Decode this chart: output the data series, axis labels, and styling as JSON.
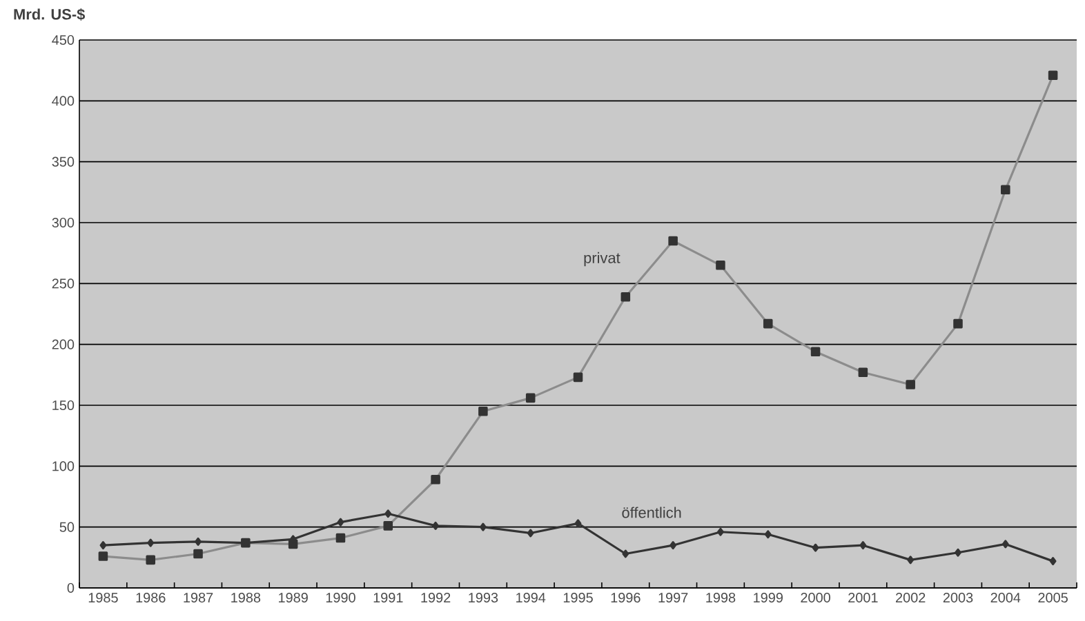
{
  "chart_data": {
    "type": "line",
    "ylabel": "Mrd. US-$",
    "categories": [
      "1985",
      "1986",
      "1987",
      "1988",
      "1989",
      "1990",
      "1991",
      "1992",
      "1993",
      "1994",
      "1995",
      "1996",
      "1997",
      "1998",
      "1999",
      "2000",
      "2001",
      "2002",
      "2003",
      "2004",
      "2005"
    ],
    "series": [
      {
        "name": "privat",
        "color": "#8c8c8c",
        "marker": "square",
        "values": [
          26,
          23,
          28,
          37,
          36,
          41,
          51,
          89,
          145,
          156,
          173,
          239,
          285,
          265,
          217,
          194,
          177,
          167,
          217,
          327,
          421
        ]
      },
      {
        "name": "öffentlich",
        "color": "#333333",
        "marker": "diamond",
        "values": [
          35,
          37,
          38,
          37,
          40,
          54,
          61,
          51,
          50,
          45,
          53,
          28,
          35,
          46,
          44,
          33,
          35,
          23,
          29,
          36,
          22
        ]
      }
    ],
    "ylim": [
      0,
      450
    ],
    "yticks": [
      0,
      50,
      100,
      150,
      200,
      250,
      300,
      350,
      400,
      450
    ],
    "grid": "y",
    "legend": false
  }
}
